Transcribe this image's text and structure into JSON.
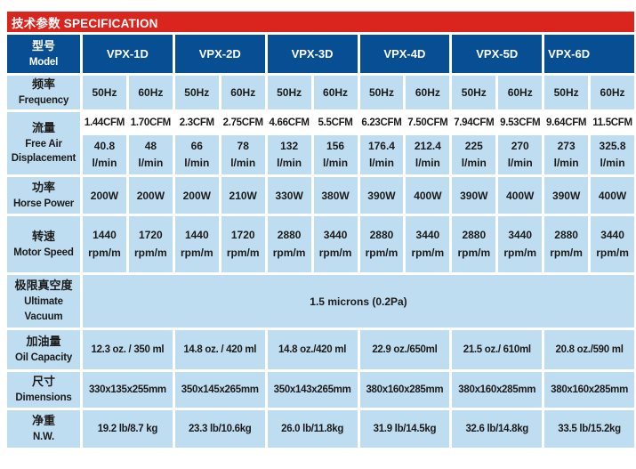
{
  "title": "技术参数 SPECIFICATION",
  "colors": {
    "red": "#d9251d",
    "dark_blue": "#084e92",
    "light_blue": "#bfddf0"
  },
  "model": {
    "zh": "型号",
    "en": "Model",
    "names": [
      "VPX-1D",
      "VPX-2D",
      "VPX-3D",
      "VPX-4D",
      "VPX-5D",
      "VPX-6D"
    ]
  },
  "frequency": {
    "zh": "频率",
    "en": "Frequency",
    "values": [
      "50Hz",
      "60Hz",
      "50Hz",
      "60Hz",
      "50Hz",
      "60Hz",
      "50Hz",
      "60Hz",
      "50Hz",
      "60Hz",
      "50Hz",
      "60Hz"
    ]
  },
  "flow": {
    "zh": "流量",
    "en_line1": "Free Air",
    "en_line2": "Displacement",
    "cfm": [
      "1.44CFM",
      "1.70CFM",
      "2.3CFM",
      "2.75CFM",
      "4.66CFM",
      "5.5CFM",
      "6.23CFM",
      "7.50CFM",
      "7.94CFM",
      "9.53CFM",
      "9.64CFM",
      "11.5CFM"
    ],
    "lmin": [
      "40.8",
      "48",
      "66",
      "78",
      "132",
      "156",
      "176.4",
      "212.4",
      "225",
      "270",
      "273",
      "325.8"
    ],
    "lmin_unit": "l/min"
  },
  "power": {
    "zh": "功率",
    "en": "Horse Power",
    "values": [
      "200W",
      "200W",
      "200W",
      "210W",
      "330W",
      "380W",
      "390W",
      "400W",
      "390W",
      "400W",
      "390W",
      "400W"
    ]
  },
  "speed": {
    "zh": "转速",
    "en": "Motor Speed",
    "values": [
      "1440",
      "1720",
      "1440",
      "1720",
      "2880",
      "3440",
      "2880",
      "3440",
      "2880",
      "3440",
      "2880",
      "3440"
    ],
    "unit": "rpm/m"
  },
  "vacuum": {
    "zh": "极限真空度",
    "en_line1": "Ultimate",
    "en_line2": "Vacuum",
    "value": "1.5 microns (0.2Pa)"
  },
  "oil": {
    "zh": "加油量",
    "en": "Oil Capacity",
    "values": [
      "12.3 oz. / 350 ml",
      "14.8 oz. / 420 ml",
      "14.8 oz./420 ml",
      "22.9 oz./650ml",
      "21.5 oz./ 610ml",
      "20.8 oz./590 ml"
    ]
  },
  "dimensions": {
    "zh": "尺寸",
    "en": "Dimensions",
    "values": [
      "330x135x255mm",
      "350x145x265mm",
      "350x143x265mm",
      "380x160x285mm",
      "380x160x285mm",
      "380x160x285mm"
    ]
  },
  "weight": {
    "zh": "净重",
    "en": "N.W.",
    "values": [
      "19.2 lb/8.7 kg",
      "23.3 lb/10.6kg",
      "26.0 lb/11.8kg",
      "31.9 lb/14.5kg",
      "32.6 lb/14.8kg",
      "33.5 lb/15.2kg"
    ]
  }
}
